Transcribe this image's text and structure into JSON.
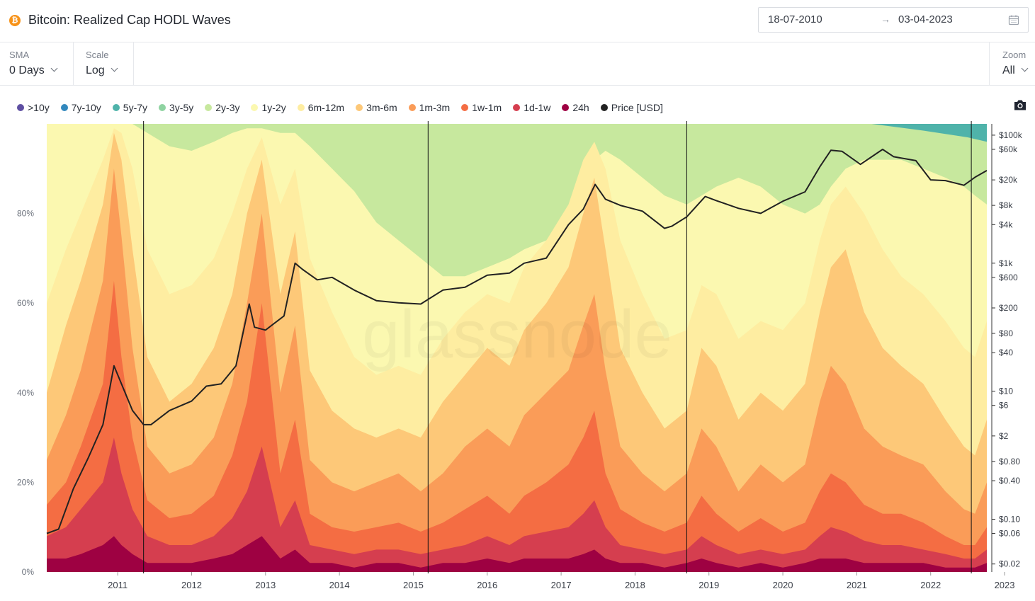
{
  "header": {
    "title": "Bitcoin: Realized Cap HODL Waves",
    "date_from": "18-07-2010",
    "date_arrow": "→",
    "date_to": "03-04-2023"
  },
  "controls": {
    "sma": {
      "label": "SMA",
      "value": "0 Days"
    },
    "scale": {
      "label": "Scale",
      "value": "Log"
    },
    "zoom": {
      "label": "Zoom",
      "value": "All"
    }
  },
  "watermark": "glassnode",
  "chart_data": {
    "type": "area",
    "title": "Bitcoin: Realized Cap HODL Waves",
    "xlabel": "",
    "ylabel": "",
    "y_left_ticks": [
      "0%",
      "20%",
      "40%",
      "60%",
      "80%"
    ],
    "y_left_range": [
      0,
      100
    ],
    "y_right_scale": "log",
    "y_right_ticks": [
      "$0.02",
      "$0.06",
      "$0.10",
      "$0.40",
      "$0.80",
      "$2",
      "$6",
      "$10",
      "$40",
      "$80",
      "$200",
      "$600",
      "$1k",
      "$4k",
      "$8k",
      "$20k",
      "$60k",
      "$100k"
    ],
    "y_right_tick_values": [
      0.02,
      0.06,
      0.1,
      0.4,
      0.8,
      2,
      6,
      10,
      40,
      80,
      200,
      600,
      1000,
      4000,
      8000,
      20000,
      60000,
      100000
    ],
    "x_ticks": [
      "2011",
      "2012",
      "2013",
      "2014",
      "2015",
      "2016",
      "2017",
      "2018",
      "2019",
      "2020",
      "2021",
      "2022",
      "2023"
    ],
    "x_range": [
      2010.54,
      2023.26
    ],
    "grid": false,
    "legend_placement": "top-left",
    "series": [
      {
        "name": "24h",
        "color": "#9e0142"
      },
      {
        "name": "1d-1w",
        "color": "#d53e4f"
      },
      {
        "name": "1w-1m",
        "color": "#f46d43"
      },
      {
        "name": "1m-3m",
        "color": "#fa9c58"
      },
      {
        "name": "3m-6m",
        "color": "#fdc878"
      },
      {
        "name": "6m-12m",
        "color": "#feeda1"
      },
      {
        "name": "1y-2y",
        "color": "#fbf8b0"
      },
      {
        "name": "2y-3y",
        "color": "#c7e89e"
      },
      {
        "name": "3y-5y",
        "color": "#8fd3a1"
      },
      {
        "name": "5y-7y",
        "color": "#4fb3aa"
      },
      {
        "name": "7y-10y",
        "color": "#3288bd"
      },
      {
        "name": ">10y",
        "color": "#5e4fa2"
      },
      {
        "name": "Price [USD]",
        "color": "#222222"
      }
    ],
    "band_timeline": {
      "x": [
        2010.54,
        2010.8,
        2011.0,
        2011.3,
        2011.45,
        2011.55,
        2011.7,
        2011.9,
        2012.2,
        2012.5,
        2012.8,
        2013.05,
        2013.25,
        2013.45,
        2013.7,
        2013.9,
        2014.1,
        2014.4,
        2014.7,
        2015.0,
        2015.3,
        2015.6,
        2015.9,
        2016.2,
        2016.5,
        2016.8,
        2017.0,
        2017.3,
        2017.6,
        2017.8,
        2017.95,
        2018.1,
        2018.3,
        2018.6,
        2018.9,
        2019.2,
        2019.4,
        2019.6,
        2019.9,
        2020.2,
        2020.5,
        2020.8,
        2021.0,
        2021.15,
        2021.35,
        2021.6,
        2021.85,
        2022.1,
        2022.4,
        2022.7,
        2022.95,
        2023.1,
        2023.26
      ],
      "cumulative_percent_tops": {
        "24h": [
          3,
          3,
          4,
          6,
          8,
          6,
          4,
          2,
          2,
          2,
          3,
          4,
          6,
          8,
          3,
          5,
          2,
          2,
          1,
          2,
          2,
          1,
          2,
          2,
          3,
          2,
          3,
          3,
          3,
          4,
          5,
          3,
          2,
          2,
          1,
          2,
          3,
          2,
          1,
          2,
          1,
          2,
          3,
          3,
          3,
          2,
          2,
          2,
          2,
          1,
          1,
          1,
          2
        ],
        "1d-1w": [
          8,
          10,
          14,
          20,
          30,
          22,
          14,
          8,
          6,
          6,
          8,
          12,
          18,
          28,
          10,
          16,
          6,
          5,
          4,
          5,
          5,
          4,
          5,
          6,
          8,
          6,
          8,
          9,
          10,
          13,
          16,
          10,
          6,
          5,
          4,
          5,
          8,
          6,
          4,
          5,
          4,
          5,
          8,
          10,
          9,
          7,
          6,
          6,
          5,
          4,
          3,
          3,
          5
        ],
        "1w-1m": [
          15,
          20,
          28,
          42,
          65,
          48,
          30,
          16,
          12,
          13,
          17,
          26,
          38,
          60,
          22,
          34,
          13,
          10,
          9,
          10,
          11,
          9,
          11,
          14,
          17,
          13,
          17,
          20,
          24,
          30,
          36,
          22,
          14,
          11,
          9,
          11,
          17,
          13,
          9,
          12,
          9,
          11,
          18,
          22,
          20,
          15,
          13,
          13,
          11,
          8,
          6,
          6,
          10
        ],
        "1m-3m": [
          25,
          35,
          45,
          65,
          90,
          75,
          50,
          28,
          22,
          24,
          30,
          42,
          60,
          80,
          40,
          55,
          25,
          20,
          18,
          20,
          22,
          18,
          22,
          28,
          32,
          28,
          35,
          40,
          45,
          55,
          62,
          45,
          28,
          22,
          18,
          22,
          32,
          28,
          18,
          24,
          20,
          24,
          38,
          46,
          42,
          32,
          28,
          26,
          24,
          18,
          14,
          13,
          20
        ],
        "3m-6m": [
          40,
          55,
          65,
          82,
          98,
          92,
          72,
          48,
          38,
          42,
          50,
          62,
          80,
          92,
          62,
          76,
          45,
          36,
          32,
          30,
          32,
          30,
          38,
          44,
          50,
          46,
          54,
          60,
          68,
          80,
          88,
          72,
          50,
          40,
          32,
          36,
          50,
          46,
          34,
          40,
          36,
          42,
          58,
          68,
          72,
          58,
          50,
          46,
          42,
          34,
          28,
          26,
          34
        ],
        "6m-12m": [
          60,
          72,
          80,
          92,
          99,
          98,
          90,
          72,
          62,
          64,
          70,
          80,
          90,
          97,
          82,
          90,
          70,
          58,
          48,
          44,
          46,
          44,
          52,
          58,
          62,
          60,
          68,
          74,
          82,
          92,
          96,
          90,
          74,
          62,
          52,
          54,
          64,
          62,
          52,
          56,
          54,
          60,
          74,
          82,
          86,
          80,
          72,
          66,
          62,
          56,
          50,
          48,
          56
        ],
        "1y-2y": [
          100,
          100,
          100,
          100,
          100,
          100,
          100,
          98,
          95,
          94,
          96,
          98,
          99,
          99,
          98,
          98,
          95,
          90,
          85,
          78,
          74,
          70,
          66,
          66,
          68,
          70,
          72,
          74,
          78,
          86,
          92,
          94,
          92,
          88,
          84,
          82,
          84,
          86,
          88,
          86,
          82,
          80,
          82,
          86,
          90,
          92,
          92,
          92,
          90,
          88,
          86,
          84,
          82
        ]
      }
    },
    "price_series": {
      "x": [
        2010.54,
        2010.7,
        2010.9,
        2011.1,
        2011.3,
        2011.45,
        2011.7,
        2011.85,
        2011.95,
        2012.2,
        2012.5,
        2012.7,
        2012.9,
        2013.1,
        2013.28,
        2013.35,
        2013.5,
        2013.75,
        2013.9,
        2014.0,
        2014.2,
        2014.4,
        2014.7,
        2015.0,
        2015.3,
        2015.6,
        2015.9,
        2016.2,
        2016.5,
        2016.8,
        2017.0,
        2017.3,
        2017.6,
        2017.8,
        2017.96,
        2018.1,
        2018.3,
        2018.6,
        2018.9,
        2019.0,
        2019.2,
        2019.45,
        2019.6,
        2019.9,
        2020.2,
        2020.5,
        2020.8,
        2021.0,
        2021.15,
        2021.3,
        2021.55,
        2021.85,
        2022.0,
        2022.3,
        2022.5,
        2022.7,
        2022.95,
        2023.1,
        2023.26
      ],
      "price": [
        0.06,
        0.07,
        0.3,
        0.9,
        3,
        25,
        5,
        3,
        3,
        5,
        7,
        12,
        13,
        25,
        230,
        100,
        90,
        150,
        1000,
        800,
        550,
        600,
        380,
        260,
        240,
        230,
        380,
        420,
        650,
        700,
        1000,
        1200,
        4000,
        7000,
        17000,
        10000,
        8000,
        6500,
        3500,
        3800,
        5300,
        11000,
        9500,
        7200,
        6000,
        9300,
        13000,
        32000,
        58000,
        56000,
        35000,
        60000,
        46000,
        40000,
        20000,
        19500,
        16500,
        22000,
        28000
      ]
    },
    "cycle_markers_x": [
      2011.85,
      2015.7,
      2019.2,
      2023.05
    ]
  }
}
